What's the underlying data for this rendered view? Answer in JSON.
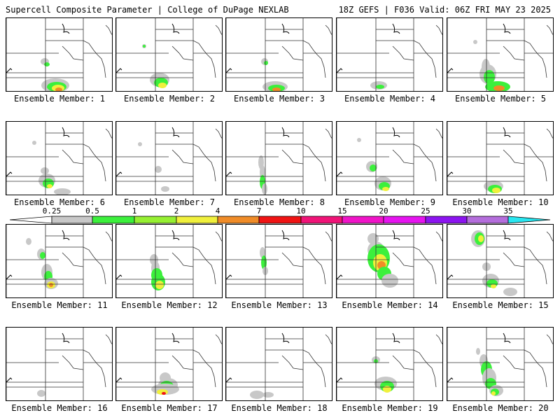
{
  "header": {
    "left": "Supercell Composite Parameter | College of DuPage NEXLAB",
    "right": "18Z GEFS | F036 Valid: 06Z FRI MAY 23 2025"
  },
  "panels": [
    {
      "label": "Ensemble Member: 1"
    },
    {
      "label": "Ensemble Member: 2"
    },
    {
      "label": "Ensemble Member: 3"
    },
    {
      "label": "Ensemble Member: 4"
    },
    {
      "label": "Ensemble Member: 5"
    },
    {
      "label": "Ensemble Member: 6"
    },
    {
      "label": "Ensemble Member: 7"
    },
    {
      "label": "Ensemble Member: 8"
    },
    {
      "label": "Ensemble Member: 9"
    },
    {
      "label": "Ensemble Member: 10"
    },
    {
      "label": "Ensemble Member: 11"
    },
    {
      "label": "Ensemble Member: 12"
    },
    {
      "label": "Ensemble Member: 13"
    },
    {
      "label": "Ensemble Member: 14"
    },
    {
      "label": "Ensemble Member: 15"
    },
    {
      "label": "Ensemble Member: 16"
    },
    {
      "label": "Ensemble Member: 17"
    },
    {
      "label": "Ensemble Member: 18"
    },
    {
      "label": "Ensemble Member: 19"
    },
    {
      "label": "Ensemble Member: 20"
    }
  ],
  "colorbar": {
    "ticks": [
      "0.25",
      "0.5",
      "1",
      "2",
      "4",
      "7",
      "10",
      "15",
      "20",
      "25",
      "30",
      "35"
    ],
    "colors": [
      "#c8c8c8",
      "#3cf03c",
      "#96f032",
      "#f0f03c",
      "#f08c28",
      "#f01414",
      "#f01478",
      "#f014c8",
      "#e614f0",
      "#8c14f0",
      "#b46edc",
      "#28e6f0"
    ]
  }
}
